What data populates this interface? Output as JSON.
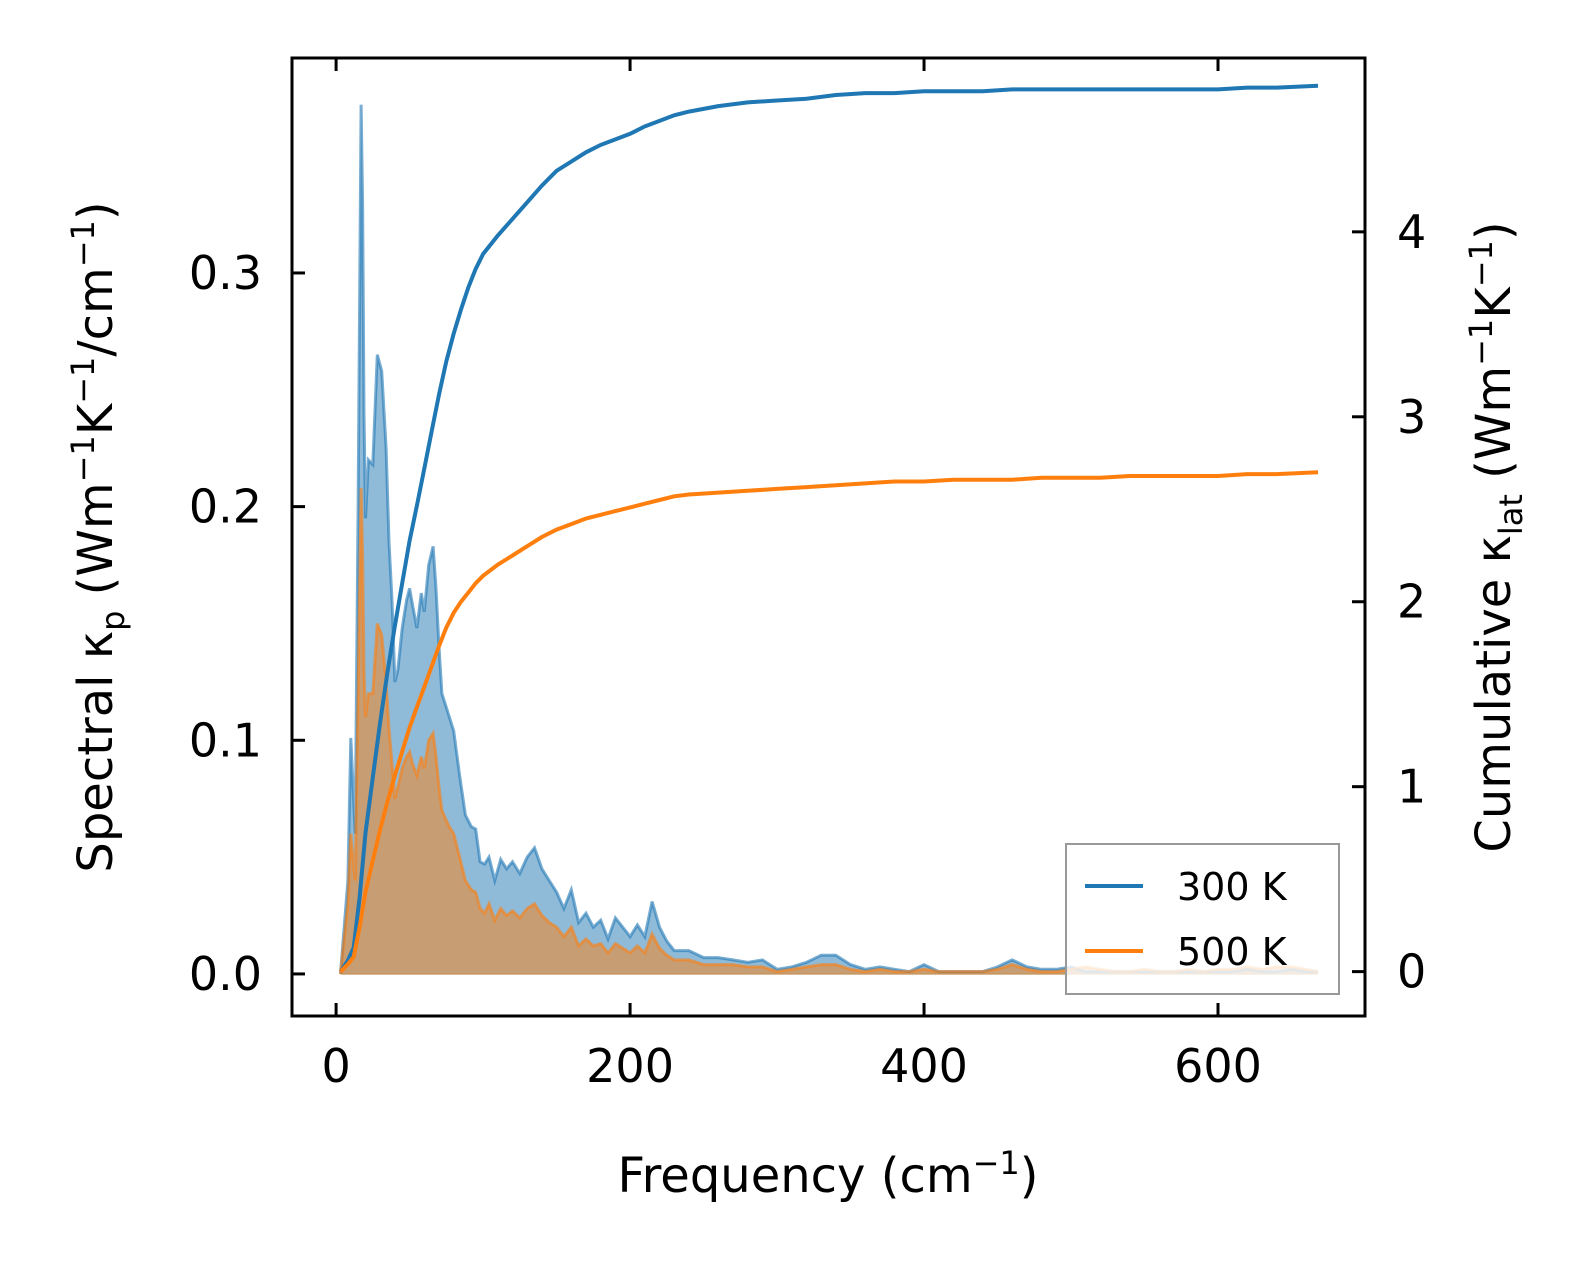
{
  "chart_data": {
    "type": "area",
    "xlabel": "Frequency (cm⁻¹)",
    "ylabel_left": "Spectral κₚ (Wm⁻¹K⁻¹/cm⁻¹)",
    "ylabel_right": "Cumulative κₗₐₜ (Wm⁻¹K⁻¹)",
    "xlim": [
      -30,
      700
    ],
    "ylim_left": [
      -0.018,
      0.392
    ],
    "ylim_right": [
      -0.24,
      4.94
    ],
    "x_ticks": [
      0,
      200,
      400,
      600
    ],
    "x_tick_labels": [
      "0",
      "200",
      "400",
      "600"
    ],
    "y_left_ticks": [
      0.0,
      0.1,
      0.2,
      0.3
    ],
    "y_left_tick_labels": [
      "0.0",
      "0.1",
      "0.2",
      "0.3"
    ],
    "y_right_ticks": [
      0,
      1,
      2,
      3,
      4
    ],
    "y_right_tick_labels": [
      "0",
      "1",
      "2",
      "3",
      "4"
    ],
    "legend_position": "lower-right",
    "series": [
      {
        "name": "300 K",
        "color": "#1f77b4",
        "fill_color": "#1f77b4",
        "spectral": {
          "x": [
            3,
            8,
            10,
            13,
            15,
            17,
            18,
            19,
            20,
            22,
            25,
            28,
            31,
            34,
            36,
            38,
            40,
            42,
            45,
            48,
            50,
            52,
            55,
            58,
            60,
            63,
            66,
            68,
            70,
            72,
            74,
            77,
            80,
            84,
            88,
            92,
            95,
            98,
            101,
            104,
            108,
            112,
            116,
            120,
            125,
            130,
            135,
            140,
            145,
            150,
            155,
            160,
            165,
            170,
            175,
            180,
            185,
            190,
            195,
            200,
            205,
            210,
            215,
            220,
            225,
            230,
            240,
            250,
            260,
            270,
            280,
            290,
            300,
            310,
            320,
            330,
            340,
            350,
            360,
            370,
            380,
            390,
            400,
            410,
            420,
            430,
            440,
            450,
            460,
            470,
            480,
            490,
            500,
            510,
            520,
            530,
            540,
            550,
            560,
            570,
            580,
            590,
            600,
            610,
            620,
            630,
            640,
            650,
            660,
            668
          ],
          "y": [
            0.0,
            0.04,
            0.101,
            0.06,
            0.2,
            0.372,
            0.33,
            0.24,
            0.195,
            0.22,
            0.218,
            0.265,
            0.258,
            0.225,
            0.185,
            0.16,
            0.125,
            0.13,
            0.148,
            0.16,
            0.165,
            0.158,
            0.148,
            0.163,
            0.155,
            0.175,
            0.183,
            0.165,
            0.14,
            0.12,
            0.116,
            0.11,
            0.104,
            0.085,
            0.068,
            0.063,
            0.062,
            0.048,
            0.047,
            0.05,
            0.04,
            0.049,
            0.045,
            0.048,
            0.043,
            0.05,
            0.054,
            0.045,
            0.04,
            0.035,
            0.028,
            0.036,
            0.022,
            0.026,
            0.02,
            0.023,
            0.015,
            0.024,
            0.02,
            0.016,
            0.021,
            0.016,
            0.031,
            0.02,
            0.014,
            0.01,
            0.01,
            0.007,
            0.007,
            0.006,
            0.005,
            0.006,
            0.002,
            0.003,
            0.005,
            0.008,
            0.008,
            0.004,
            0.002,
            0.003,
            0.002,
            0.001,
            0.004,
            0.001,
            0.001,
            0.001,
            0.001,
            0.003,
            0.006,
            0.003,
            0.002,
            0.002,
            0.003,
            0.001,
            0.001,
            0.001,
            0.001,
            0.001,
            0.001,
            0.001,
            0.001,
            0.001,
            0.001,
            0.001,
            0.002,
            0.001,
            0.001,
            0.002,
            0.001,
            0.001
          ]
        },
        "cumulative": {
          "x": [
            3,
            8,
            12,
            16,
            20,
            25,
            30,
            35,
            40,
            45,
            50,
            55,
            60,
            65,
            70,
            75,
            80,
            85,
            90,
            95,
            100,
            110,
            120,
            130,
            140,
            150,
            160,
            170,
            180,
            190,
            200,
            210,
            220,
            230,
            240,
            260,
            280,
            300,
            320,
            340,
            360,
            380,
            400,
            420,
            440,
            460,
            480,
            500,
            520,
            540,
            560,
            580,
            600,
            620,
            640,
            668
          ],
          "y": [
            0.0,
            0.06,
            0.13,
            0.4,
            0.75,
            1.05,
            1.35,
            1.62,
            1.87,
            2.1,
            2.33,
            2.52,
            2.72,
            2.92,
            3.12,
            3.3,
            3.45,
            3.58,
            3.7,
            3.8,
            3.88,
            3.98,
            4.07,
            4.16,
            4.25,
            4.33,
            4.38,
            4.43,
            4.47,
            4.5,
            4.53,
            4.57,
            4.6,
            4.63,
            4.65,
            4.68,
            4.7,
            4.71,
            4.72,
            4.74,
            4.75,
            4.75,
            4.76,
            4.76,
            4.76,
            4.77,
            4.77,
            4.77,
            4.77,
            4.77,
            4.77,
            4.77,
            4.77,
            4.78,
            4.78,
            4.79
          ]
        }
      },
      {
        "name": "500 K",
        "color": "#ff7f0e",
        "fill_color": "#ff7f0e",
        "spectral": {
          "x": [
            3,
            8,
            10,
            13,
            15,
            17,
            18,
            19,
            20,
            22,
            25,
            28,
            31,
            34,
            36,
            38,
            40,
            42,
            45,
            48,
            50,
            52,
            55,
            58,
            60,
            63,
            66,
            68,
            70,
            72,
            74,
            77,
            80,
            84,
            88,
            92,
            95,
            98,
            101,
            104,
            108,
            112,
            116,
            120,
            125,
            130,
            135,
            140,
            145,
            150,
            155,
            160,
            165,
            170,
            175,
            180,
            185,
            190,
            195,
            200,
            205,
            210,
            215,
            220,
            225,
            230,
            240,
            250,
            260,
            270,
            280,
            290,
            300,
            310,
            320,
            330,
            340,
            350,
            360,
            370,
            380,
            390,
            400,
            410,
            420,
            430,
            440,
            450,
            460,
            470,
            480,
            490,
            500,
            510,
            520,
            530,
            540,
            550,
            560,
            570,
            580,
            590,
            600,
            610,
            620,
            630,
            640,
            650,
            660,
            668
          ],
          "y": [
            0.0,
            0.03,
            0.06,
            0.04,
            0.12,
            0.208,
            0.18,
            0.13,
            0.11,
            0.12,
            0.12,
            0.15,
            0.145,
            0.125,
            0.105,
            0.09,
            0.075,
            0.08,
            0.088,
            0.093,
            0.095,
            0.09,
            0.085,
            0.093,
            0.088,
            0.1,
            0.103,
            0.093,
            0.08,
            0.07,
            0.067,
            0.063,
            0.06,
            0.05,
            0.04,
            0.036,
            0.035,
            0.028,
            0.026,
            0.03,
            0.023,
            0.028,
            0.025,
            0.027,
            0.024,
            0.028,
            0.03,
            0.025,
            0.022,
            0.02,
            0.016,
            0.02,
            0.012,
            0.015,
            0.012,
            0.013,
            0.009,
            0.013,
            0.011,
            0.009,
            0.012,
            0.009,
            0.017,
            0.011,
            0.008,
            0.006,
            0.006,
            0.004,
            0.004,
            0.004,
            0.003,
            0.003,
            0.001,
            0.002,
            0.003,
            0.004,
            0.004,
            0.002,
            0.001,
            0.002,
            0.001,
            0.001,
            0.002,
            0.001,
            0.001,
            0.001,
            0.001,
            0.002,
            0.004,
            0.002,
            0.001,
            0.001,
            0.002,
            0.003,
            0.002,
            0.001,
            0.001,
            0.002,
            0.001,
            0.001,
            0.002,
            0.001,
            0.002,
            0.002,
            0.003,
            0.002,
            0.003,
            0.003,
            0.002,
            0.001
          ]
        },
        "cumulative": {
          "x": [
            3,
            8,
            12,
            16,
            20,
            25,
            30,
            35,
            40,
            45,
            50,
            55,
            60,
            65,
            70,
            75,
            80,
            85,
            90,
            95,
            100,
            110,
            120,
            130,
            140,
            150,
            160,
            170,
            180,
            190,
            200,
            210,
            220,
            230,
            240,
            260,
            280,
            300,
            320,
            340,
            360,
            380,
            400,
            420,
            440,
            460,
            480,
            500,
            520,
            540,
            560,
            580,
            600,
            620,
            640,
            668
          ],
          "y": [
            0.0,
            0.04,
            0.08,
            0.24,
            0.43,
            0.6,
            0.77,
            0.92,
            1.06,
            1.19,
            1.32,
            1.43,
            1.54,
            1.65,
            1.76,
            1.86,
            1.94,
            2.0,
            2.05,
            2.1,
            2.14,
            2.2,
            2.25,
            2.3,
            2.35,
            2.39,
            2.42,
            2.45,
            2.47,
            2.49,
            2.51,
            2.53,
            2.55,
            2.57,
            2.58,
            2.59,
            2.6,
            2.61,
            2.62,
            2.63,
            2.64,
            2.65,
            2.65,
            2.66,
            2.66,
            2.66,
            2.67,
            2.67,
            2.67,
            2.68,
            2.68,
            2.68,
            2.68,
            2.69,
            2.69,
            2.7
          ]
        }
      }
    ]
  }
}
